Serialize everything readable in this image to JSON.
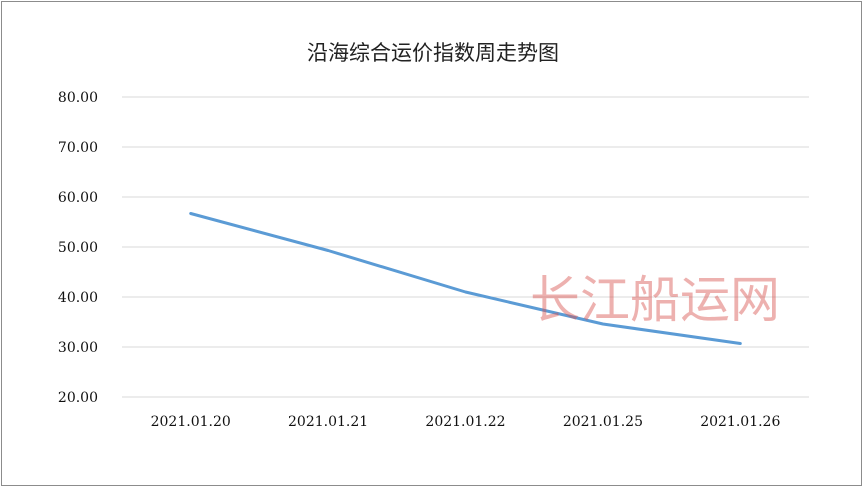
{
  "chart_data": {
    "type": "line",
    "title": "沿海综合运价指数周走势图",
    "categories": [
      "2021.01.20",
      "2021.01.21",
      "2021.01.22",
      "2021.01.25",
      "2021.01.26"
    ],
    "series": [
      {
        "values": [
          56.7,
          49.3,
          41.0,
          34.6,
          30.7
        ],
        "color": "#5b9bd5"
      }
    ],
    "yticks": [
      "20.00",
      "30.00",
      "40.00",
      "50.00",
      "60.00",
      "70.00",
      "80.00"
    ],
    "ylim": [
      20,
      80
    ],
    "xlabel": "",
    "ylabel": "",
    "grid": true,
    "legend": "none"
  },
  "watermark": "长江船运网"
}
